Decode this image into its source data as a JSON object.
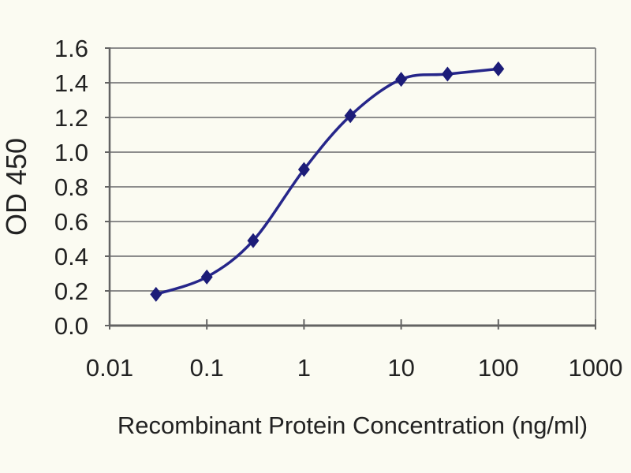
{
  "figure": {
    "background": "#fbfbf2",
    "text_color": "#222222"
  },
  "chart_data": {
    "type": "line",
    "title": "",
    "xlabel": "Recombinant Protein Concentration (ng/ml)",
    "ylabel": "OD 450",
    "x_scale": "log",
    "xlim": [
      0.01,
      1000
    ],
    "ylim": [
      0.0,
      1.6
    ],
    "grid": "horizontal-major",
    "legend": "none",
    "x_ticks": [
      {
        "value": 0.01,
        "label": "0.01"
      },
      {
        "value": 0.1,
        "label": "0.1"
      },
      {
        "value": 1,
        "label": "1"
      },
      {
        "value": 10,
        "label": "10"
      },
      {
        "value": 100,
        "label": "100"
      },
      {
        "value": 1000,
        "label": "1000"
      }
    ],
    "y_ticks": [
      {
        "value": 0.0,
        "label": "0.0"
      },
      {
        "value": 0.2,
        "label": "0.2"
      },
      {
        "value": 0.4,
        "label": "0.4"
      },
      {
        "value": 0.6,
        "label": "0.6"
      },
      {
        "value": 0.8,
        "label": "0.8"
      },
      {
        "value": 1.0,
        "label": "1.0"
      },
      {
        "value": 1.2,
        "label": "1.2"
      },
      {
        "value": 1.4,
        "label": "1.4"
      },
      {
        "value": 1.6,
        "label": "1.6"
      }
    ],
    "colors": {
      "line": "#26268a",
      "marker": "#1c1c78",
      "gridline": "#8c8c8c",
      "axis": "#636363",
      "text": "#222222"
    },
    "series": [
      {
        "name": "OD 450",
        "marker": "diamond",
        "smooth": true,
        "points": [
          {
            "x": 0.03,
            "y": 0.18
          },
          {
            "x": 0.1,
            "y": 0.28
          },
          {
            "x": 0.3,
            "y": 0.49
          },
          {
            "x": 1,
            "y": 0.9
          },
          {
            "x": 3,
            "y": 1.21
          },
          {
            "x": 10,
            "y": 1.42
          },
          {
            "x": 30,
            "y": 1.45
          },
          {
            "x": 100,
            "y": 1.48
          }
        ]
      }
    ]
  }
}
